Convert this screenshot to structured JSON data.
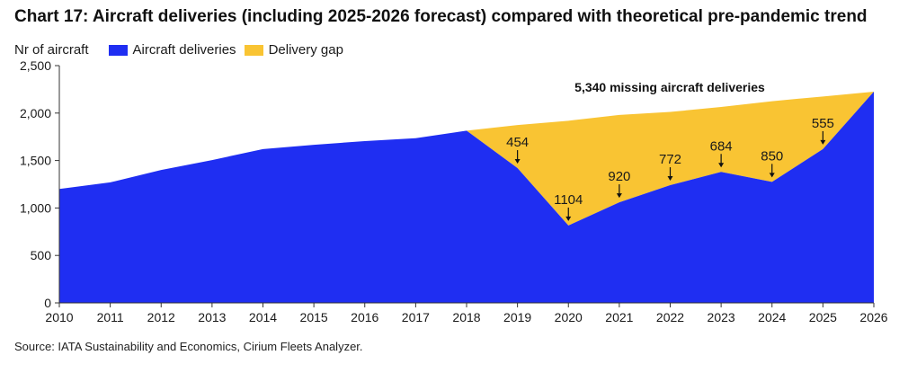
{
  "chart_data": {
    "type": "area",
    "title": "Chart 17: Aircraft deliveries (including 2025-2026 forecast) compared with theoretical pre-pandemic trend",
    "ylabel": "Nr of aircraft",
    "xlabel": "",
    "ylim": [
      0,
      2500
    ],
    "yticks": [
      0,
      500,
      1000,
      1500,
      2000,
      2500
    ],
    "ytick_labels": [
      "0",
      "500",
      "1,000",
      "1,500",
      "2,000",
      "2,500"
    ],
    "x": [
      2010,
      2011,
      2012,
      2013,
      2014,
      2015,
      2016,
      2017,
      2018,
      2019,
      2020,
      2021,
      2022,
      2023,
      2024,
      2025,
      2026
    ],
    "xtick_labels": [
      "2010",
      "2011",
      "2012",
      "2013",
      "2014",
      "2015",
      "2016",
      "2017",
      "2018",
      "2019",
      "2020",
      "2021",
      "2022",
      "2023",
      "2024",
      "2025",
      "2026"
    ],
    "grid": false,
    "legend_position": "top-left",
    "series": [
      {
        "name": "Aircraft deliveries",
        "color": "#1f2ef2",
        "values": [
          1200,
          1270,
          1400,
          1505,
          1620,
          1665,
          1705,
          1735,
          1815,
          1420,
          815,
          1060,
          1240,
          1380,
          1275,
          1620,
          2225
        ]
      },
      {
        "name": "Delivery gap",
        "color": "#f9c433",
        "values": [
          0,
          0,
          0,
          0,
          0,
          0,
          0,
          0,
          0,
          454,
          1104,
          920,
          772,
          684,
          850,
          555,
          0
        ]
      }
    ],
    "gap_labels": [
      {
        "year": 2019,
        "text": "454"
      },
      {
        "year": 2020,
        "text": "1104"
      },
      {
        "year": 2021,
        "text": "920"
      },
      {
        "year": 2022,
        "text": "772"
      },
      {
        "year": 2023,
        "text": "684"
      },
      {
        "year": 2024,
        "text": "850"
      },
      {
        "year": 2025,
        "text": "555"
      }
    ],
    "annotation": "5,340 missing aircraft deliveries",
    "source": "Source: IATA Sustainability and Economics, Cirium Fleets Analyzer."
  }
}
